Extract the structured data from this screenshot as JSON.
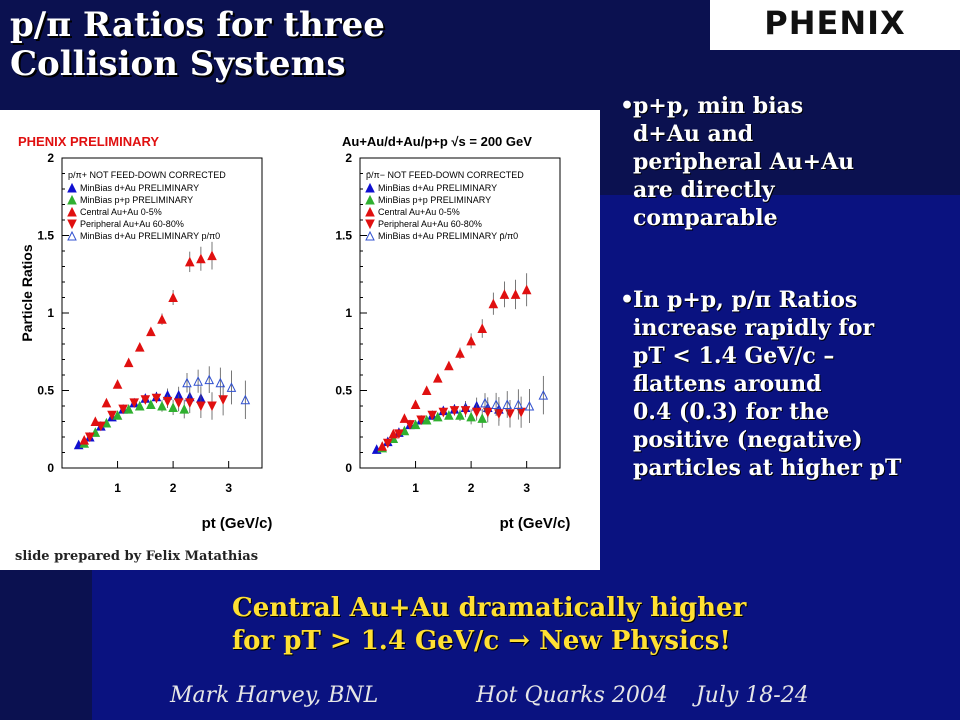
{
  "title_line1": "p/π Ratios for three",
  "title_line2": "Collision Systems",
  "logo_text": "PHENIX",
  "bullet1": "p+p, min bias\nd+Au and\nperipheral Au+Au\nare directly\ncomparable",
  "bullet2": "In p+p, p/π Ratios\nincrease rapidly for\npT < 1.4 GeV/c –\nflattens around\n0.4 (0.3) for the\npositive (negative)\nparticles at higher pT",
  "bottom_text": "Central Au+Au dramatically higher\nfor pT > 1.4 GeV/c → New Physics!",
  "footer": "Mark Harvey, BNL              Hot Quarks 2004    July 18-24",
  "credit": "slide prepared by Felix Matathias",
  "colors": {
    "dau": "#1010d0",
    "pp": "#30b030",
    "central": "#e01010",
    "peripheral": "#e01010",
    "pi0": "#3050d0"
  },
  "chart_data": [
    {
      "type": "scatter",
      "title": "PHENIX PRELIMINARY",
      "xlabel": "p_t (GeV/c)",
      "ylabel": "Particle Ratios",
      "xlim": [
        0,
        3.6
      ],
      "ylim": [
        0,
        2
      ],
      "xticks": [
        "1",
        "2",
        "3"
      ],
      "yticks": [
        "0",
        "0.5",
        "1",
        "1.5",
        "2"
      ],
      "legend_header": "p/π+ NOT FEED-DOWN CORRECTED",
      "series": [
        {
          "name": "MinBias d+Au PRELIMINARY",
          "marker": "tri-up",
          "color": "dau",
          "x": [
            0.3,
            0.5,
            0.7,
            0.9,
            1.1,
            1.3,
            1.5,
            1.7,
            1.9,
            2.1,
            2.3,
            2.5
          ],
          "y": [
            0.15,
            0.2,
            0.27,
            0.33,
            0.38,
            0.42,
            0.45,
            0.46,
            0.47,
            0.47,
            0.46,
            0.45
          ]
        },
        {
          "name": "MinBias p+p PRELIMINARY",
          "marker": "tri-up",
          "color": "pp",
          "x": [
            0.4,
            0.6,
            0.8,
            1.0,
            1.2,
            1.4,
            1.6,
            1.8,
            2.0,
            2.2
          ],
          "y": [
            0.16,
            0.23,
            0.29,
            0.34,
            0.38,
            0.4,
            0.41,
            0.4,
            0.39,
            0.38
          ]
        },
        {
          "name": "Central Au+Au 0-5%",
          "marker": "tri-up",
          "color": "central",
          "x": [
            0.4,
            0.6,
            0.8,
            1.0,
            1.2,
            1.4,
            1.6,
            1.8,
            2.0,
            2.3,
            2.5,
            2.7
          ],
          "y": [
            0.18,
            0.3,
            0.42,
            0.54,
            0.68,
            0.78,
            0.88,
            0.96,
            1.1,
            1.33,
            1.35,
            1.37
          ]
        },
        {
          "name": "Peripheral Au+Au 60-80%",
          "marker": "tri-down",
          "color": "peripheral",
          "x": [
            0.5,
            0.7,
            0.9,
            1.1,
            1.3,
            1.5,
            1.7,
            1.9,
            2.1,
            2.3,
            2.5,
            2.7,
            2.9
          ],
          "y": [
            0.2,
            0.27,
            0.34,
            0.38,
            0.42,
            0.44,
            0.45,
            0.43,
            0.42,
            0.42,
            0.4,
            0.4,
            0.44
          ]
        },
        {
          "name": "MinBias d+Au PRELIMINARY p/π0",
          "marker": "tri-open",
          "color": "pi0",
          "x": [
            2.25,
            2.45,
            2.65,
            2.85,
            3.05,
            3.3
          ],
          "y": [
            0.55,
            0.56,
            0.57,
            0.55,
            0.52,
            0.44
          ]
        }
      ]
    },
    {
      "type": "scatter",
      "title": "Au+Au/d+Au/p+p √s = 200 GeV",
      "xlabel": "p_t (GeV/c)",
      "ylabel": "",
      "xlim": [
        0,
        3.6
      ],
      "ylim": [
        0,
        2
      ],
      "xticks": [
        "1",
        "2",
        "3"
      ],
      "yticks": [
        "0",
        "0.5",
        "1",
        "1.5",
        "2"
      ],
      "legend_header": "p̄/π− NOT FEED-DOWN CORRECTED",
      "series": [
        {
          "name": "MinBias d+Au PRELIMINARY",
          "marker": "tri-up",
          "color": "dau",
          "x": [
            0.3,
            0.5,
            0.7,
            0.9,
            1.1,
            1.3,
            1.5,
            1.7,
            1.9,
            2.1,
            2.3,
            2.5
          ],
          "y": [
            0.12,
            0.17,
            0.23,
            0.28,
            0.31,
            0.34,
            0.37,
            0.38,
            0.39,
            0.4,
            0.39,
            0.38
          ]
        },
        {
          "name": "MinBias p+p PRELIMINARY",
          "marker": "tri-up",
          "color": "pp",
          "x": [
            0.4,
            0.6,
            0.8,
            1.0,
            1.2,
            1.4,
            1.6,
            1.8,
            2.0,
            2.2
          ],
          "y": [
            0.13,
            0.19,
            0.24,
            0.28,
            0.31,
            0.33,
            0.34,
            0.34,
            0.33,
            0.32
          ]
        },
        {
          "name": "Central Au+Au 0-5%",
          "marker": "tri-up",
          "color": "central",
          "x": [
            0.4,
            0.6,
            0.8,
            1.0,
            1.2,
            1.4,
            1.6,
            1.8,
            2.0,
            2.2,
            2.4,
            2.6,
            2.8,
            3.0
          ],
          "y": [
            0.14,
            0.22,
            0.32,
            0.41,
            0.5,
            0.58,
            0.66,
            0.74,
            0.82,
            0.9,
            1.06,
            1.12,
            1.12,
            1.15
          ]
        },
        {
          "name": "Peripheral Au+Au 60-80%",
          "marker": "tri-down",
          "color": "peripheral",
          "x": [
            0.5,
            0.7,
            0.9,
            1.1,
            1.3,
            1.5,
            1.7,
            1.9,
            2.1,
            2.3,
            2.5,
            2.7,
            2.9
          ],
          "y": [
            0.16,
            0.22,
            0.28,
            0.31,
            0.34,
            0.36,
            0.37,
            0.37,
            0.36,
            0.36,
            0.35,
            0.35,
            0.36
          ]
        },
        {
          "name": "MinBias d+Au PRELIMINARY p̄/π0",
          "marker": "tri-open",
          "color": "pi0",
          "x": [
            2.25,
            2.45,
            2.65,
            2.85,
            3.05,
            3.3
          ],
          "y": [
            0.42,
            0.41,
            0.41,
            0.41,
            0.4,
            0.47
          ]
        }
      ]
    }
  ]
}
